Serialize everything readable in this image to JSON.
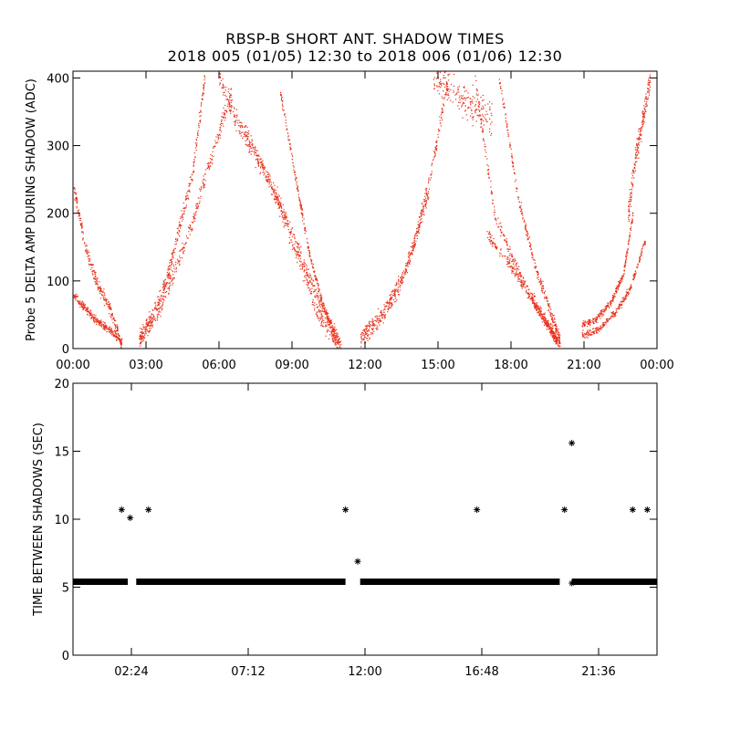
{
  "title": "RBSP-B SHORT ANT. SHADOW TIMES",
  "subtitle": "2018 005 (01/05) 12:30 to 2018 006 (01/06) 12:30",
  "colors": {
    "top_series": "#e8301a",
    "bottom_series": "#000000",
    "axes": "#000000"
  },
  "chart_data": [
    {
      "type": "scatter",
      "ylabel": "Probe 5 DELTA AMP DURING SHADOW (ADC)",
      "xlabel": "",
      "xlim": [
        0,
        24
      ],
      "ylim": [
        0,
        410
      ],
      "x_ticks": [
        0,
        3,
        6,
        9,
        12,
        15,
        18,
        21,
        24
      ],
      "x_tick_labels": [
        "00:00",
        "03:00",
        "06:00",
        "09:00",
        "12:00",
        "15:00",
        "18:00",
        "21:00",
        "00:00"
      ],
      "y_ticks": [
        0,
        100,
        200,
        300,
        400
      ],
      "y_tick_labels": [
        "0",
        "100",
        "200",
        "300",
        "400"
      ],
      "series": [
        {
          "marker": "dot",
          "color": "#e8301a",
          "curves": [
            {
              "x": [
                0.0,
                0.5,
                1.0,
                1.5,
                2.0
              ],
              "y": [
                240,
                150,
                95,
                60,
                5
              ],
              "spread": 14
            },
            {
              "x": [
                0.0,
                0.5,
                1.0,
                1.5,
                2.0
              ],
              "y": [
                80,
                60,
                40,
                28,
                10
              ],
              "spread": 8
            },
            {
              "x": [
                2.7,
                3.2,
                3.8,
                4.3,
                4.9,
                5.4
              ],
              "y": [
                10,
                40,
                100,
                170,
                260,
                400
              ],
              "spread": 18
            },
            {
              "x": [
                2.7,
                3.5,
                4.2,
                5.0,
                5.8,
                6.5
              ],
              "y": [
                20,
                55,
                120,
                200,
                300,
                380
              ],
              "spread": 20
            },
            {
              "x": [
                6.0,
                6.8,
                7.6,
                8.4,
                9.2,
                10.0,
                10.6,
                11.0
              ],
              "y": [
                400,
                330,
                280,
                220,
                140,
                60,
                25,
                5
              ],
              "spread": 22
            },
            {
              "x": [
                7.0,
                8.0,
                9.0,
                10.0,
                10.8
              ],
              "y": [
                330,
                250,
                170,
                80,
                20
              ],
              "spread": 14
            },
            {
              "x": [
                8.5,
                9.2,
                9.7,
                10.3,
                10.9
              ],
              "y": [
                380,
                240,
                140,
                60,
                10
              ],
              "spread": 10
            },
            {
              "x": [
                11.8,
                12.6,
                13.4,
                14.1,
                14.7,
                15.4
              ],
              "y": [
                10,
                40,
                90,
                170,
                260,
                400
              ],
              "spread": 16
            },
            {
              "x": [
                11.8,
                12.8,
                13.8,
                14.6
              ],
              "y": [
                20,
                60,
                130,
                230
              ],
              "spread": 12
            },
            {
              "x": [
                14.8,
                15.6,
                16.4,
                17.2
              ],
              "y": [
                400,
                380,
                360,
                340
              ],
              "spread": 35
            },
            {
              "x": [
                16.5,
                17.3,
                18.2,
                19.0,
                19.6,
                20.0
              ],
              "y": [
                400,
                200,
                120,
                65,
                30,
                5
              ],
              "spread": 14
            },
            {
              "x": [
                17.0,
                18.0,
                18.9,
                19.5,
                19.9
              ],
              "y": [
                170,
                120,
                70,
                35,
                10
              ],
              "spread": 10
            },
            {
              "x": [
                17.5,
                18.3,
                19.0,
                19.6,
                20.0
              ],
              "y": [
                400,
                220,
                120,
                55,
                15
              ],
              "spread": 12
            },
            {
              "x": [
                20.9,
                21.5,
                22.1,
                22.6,
                23.0
              ],
              "y": [
                35,
                45,
                70,
                110,
                200
              ],
              "spread": 8
            },
            {
              "x": [
                20.9,
                21.6,
                22.3,
                22.9,
                23.5
              ],
              "y": [
                20,
                30,
                55,
                90,
                160
              ],
              "spread": 8
            },
            {
              "x": [
                22.8,
                23.1,
                23.4,
                23.7
              ],
              "y": [
                200,
                280,
                340,
                400
              ],
              "spread": 25
            }
          ]
        }
      ]
    },
    {
      "type": "scatter",
      "ylabel": "TIME BETWEEN SHADOWS (SEC)",
      "xlabel": "",
      "xlim": [
        0,
        24
      ],
      "ylim": [
        0,
        20
      ],
      "x_ticks": [
        2.4,
        7.2,
        12.0,
        16.8,
        21.6
      ],
      "x_tick_labels": [
        "02:24",
        "07:12",
        "12:00",
        "16:48",
        "21:36"
      ],
      "y_ticks": [
        0,
        5,
        10,
        15,
        20
      ],
      "y_tick_labels": [
        "0",
        "5",
        "10",
        "15",
        "20"
      ],
      "series": [
        {
          "marker": "asterisk",
          "color": "#000000",
          "baseline": {
            "y": 5.4,
            "ranges": [
              [
                0.0,
                2.25
              ],
              [
                2.6,
                11.2
              ],
              [
                11.8,
                20.0
              ],
              [
                20.5,
                24.0
              ]
            ]
          },
          "points": [
            {
              "x": 2.0,
              "y": 10.7
            },
            {
              "x": 2.35,
              "y": 10.1
            },
            {
              "x": 3.1,
              "y": 10.7
            },
            {
              "x": 11.2,
              "y": 10.7
            },
            {
              "x": 11.7,
              "y": 6.9
            },
            {
              "x": 16.6,
              "y": 10.7
            },
            {
              "x": 20.2,
              "y": 10.7
            },
            {
              "x": 20.5,
              "y": 15.6
            },
            {
              "x": 20.5,
              "y": 5.3
            },
            {
              "x": 23.0,
              "y": 10.7
            },
            {
              "x": 23.6,
              "y": 10.7
            }
          ]
        }
      ]
    }
  ]
}
